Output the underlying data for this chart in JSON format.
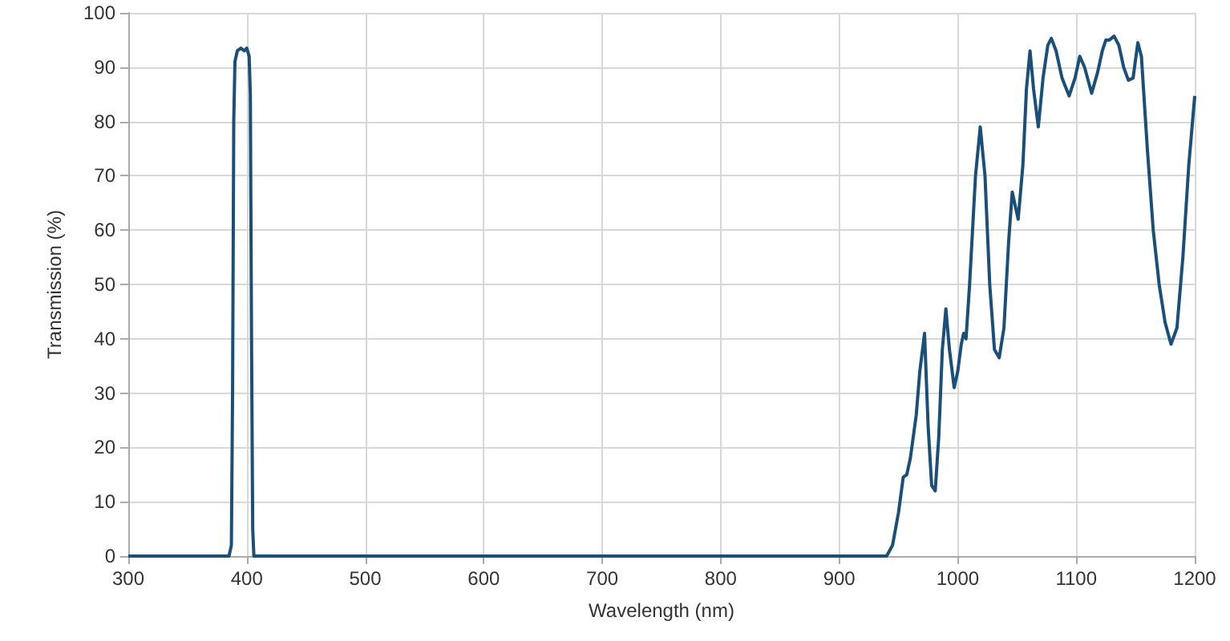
{
  "chart_data": {
    "type": "line",
    "xlabel": "Wavelength (nm)",
    "ylabel": "Transmission (%)",
    "x": [
      300,
      385,
      387,
      388,
      389,
      390,
      392,
      395,
      398,
      400,
      402,
      403,
      404,
      405,
      406,
      800,
      940,
      945,
      950,
      954,
      957,
      960,
      965,
      968,
      972,
      975,
      978,
      981,
      984,
      987,
      990,
      993,
      997,
      1000,
      1003,
      1005,
      1007,
      1010,
      1015,
      1019,
      1023,
      1027,
      1031,
      1035,
      1039,
      1043,
      1046,
      1051,
      1055,
      1058,
      1061,
      1064,
      1068,
      1072,
      1076,
      1079,
      1083,
      1088,
      1094,
      1099,
      1103,
      1107,
      1113,
      1118,
      1122,
      1125,
      1128,
      1132,
      1136,
      1140,
      1144,
      1148,
      1152,
      1155,
      1160,
      1165,
      1170,
      1175,
      1180,
      1185,
      1190,
      1195,
      1200
    ],
    "series": [
      {
        "color": "#1a4f7a",
        "values": [
          0,
          0,
          2,
          30,
          80,
          91,
          93,
          93.5,
          93,
          93.5,
          92,
          85,
          40,
          5,
          0,
          0,
          0,
          2,
          8,
          14.5,
          15,
          18,
          26,
          34,
          41,
          24,
          13,
          12,
          22,
          38,
          45.5,
          38,
          31,
          34,
          39,
          41,
          40,
          50,
          70,
          79,
          70,
          50,
          38,
          36.5,
          42,
          58,
          67,
          62,
          72,
          86,
          93,
          86,
          79,
          88,
          94,
          95.3,
          93,
          88,
          84.7,
          88,
          92,
          90,
          85.2,
          89,
          93,
          95,
          95,
          95.7,
          94,
          90,
          87.6,
          88,
          94.5,
          92,
          75,
          60,
          50,
          43,
          39,
          42,
          55,
          72,
          84.7
        ]
      }
    ],
    "xlim": [
      300,
      1200
    ],
    "xticks": [
      300,
      400,
      500,
      600,
      700,
      800,
      900,
      1000,
      1100,
      1200
    ],
    "ylim": [
      0,
      100
    ],
    "yticks": [
      0,
      10,
      20,
      30,
      40,
      50,
      60,
      70,
      80,
      90,
      100
    ],
    "grid": true,
    "marker": "none",
    "line_style": "solid"
  }
}
